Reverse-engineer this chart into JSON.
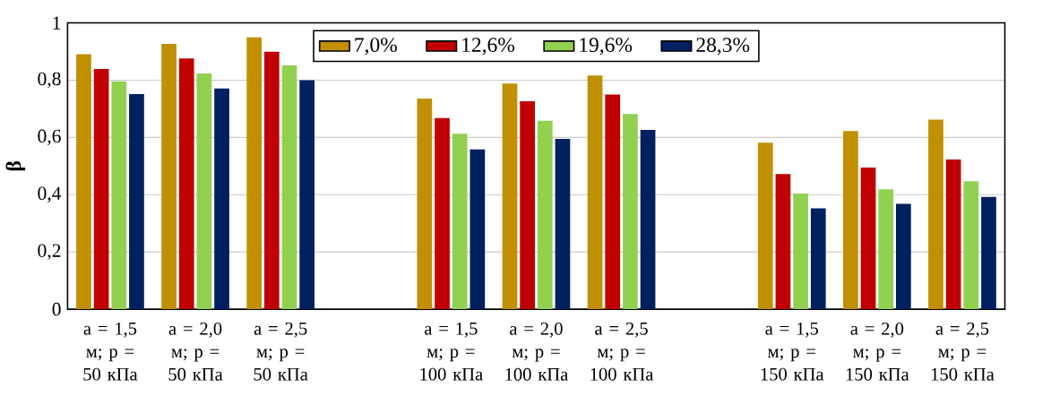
{
  "chart_data": {
    "type": "bar",
    "ylabel": "β",
    "categories": [
      "a = 1,5 м; p = 50 кПа",
      "a = 2,0 м; p = 50 кПа",
      "a = 2,5 м; p = 50 кПа",
      null,
      "a = 1,5 м; p = 100 кПа",
      "a = 2,0 м; p = 100 кПа",
      "a = 2,5 м; p = 100 кПа",
      null,
      "a = 1,5 м; p = 150 кПа",
      "a = 2,0 м; p = 150 кПа",
      "a = 2,5 м; p = 150 кПа"
    ],
    "series": [
      {
        "name": "7,0%",
        "color": "#c09000",
        "values": [
          0.891,
          0.927,
          0.95,
          null,
          0.736,
          0.788,
          0.816,
          null,
          0.582,
          0.622,
          0.662
        ]
      },
      {
        "name": "12,6%",
        "color": "#c00000",
        "values": [
          0.839,
          0.876,
          0.899,
          null,
          0.668,
          0.726,
          0.75,
          null,
          0.472,
          0.495,
          0.523
        ]
      },
      {
        "name": "19,6%",
        "color": "#92d050",
        "values": [
          0.796,
          0.823,
          0.852,
          null,
          0.613,
          0.658,
          0.682,
          null,
          0.404,
          0.419,
          0.447
        ]
      },
      {
        "name": "28,3%",
        "color": "#002060",
        "values": [
          0.751,
          0.771,
          0.8,
          null,
          0.558,
          0.595,
          0.626,
          null,
          0.352,
          0.368,
          0.392
        ]
      }
    ],
    "ylim": [
      0,
      1
    ],
    "yticks": [
      0,
      {
        "value": 0.2,
        "label": "0,2"
      },
      {
        "value": 0.4,
        "label": "0,4"
      },
      {
        "value": 0.6,
        "label": "0,6"
      },
      {
        "value": 0.8,
        "label": "0,8"
      },
      1
    ],
    "grid": "y",
    "legend": "top"
  }
}
